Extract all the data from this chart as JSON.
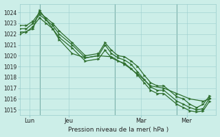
{
  "bg_color": "#cceee8",
  "grid_color": "#99cccc",
  "line_color": "#2d6e2d",
  "marker_color": "#2d6e2d",
  "xlabel": "Pression niveau de la mer( hPa )",
  "ylim": [
    1014.5,
    1024.8
  ],
  "yticks": [
    1015,
    1016,
    1017,
    1018,
    1019,
    1020,
    1021,
    1022,
    1023,
    1024
  ],
  "xlim": [
    0,
    30
  ],
  "xtick_labels": [
    "Lun",
    "Jeu",
    "Mar",
    "Mer"
  ],
  "xtick_positions": [
    1.5,
    7.5,
    18.5,
    25.5
  ],
  "vline_positions": [
    3.0,
    14.5,
    24.0
  ],
  "series": [
    {
      "x": [
        0,
        1,
        2,
        3,
        4,
        5,
        6,
        8,
        10,
        12,
        13,
        14,
        15,
        16,
        17,
        18,
        19,
        20,
        21,
        22,
        24,
        25,
        26,
        27,
        28,
        29
      ],
      "y": [
        1022.8,
        1022.8,
        1023.2,
        1024.0,
        1023.5,
        1023.0,
        1022.3,
        1021.2,
        1020.0,
        1020.2,
        1021.2,
        1020.5,
        1020.0,
        1019.9,
        1019.5,
        1019.0,
        1018.2,
        1017.5,
        1017.2,
        1017.2,
        1016.2,
        1016.0,
        1015.5,
        1015.2,
        1015.5,
        1016.3
      ]
    },
    {
      "x": [
        0,
        1,
        2,
        3,
        4,
        5,
        6,
        8,
        10,
        12,
        13,
        14,
        15,
        16,
        17,
        18,
        19,
        20,
        21,
        22,
        24,
        25,
        26,
        27,
        28,
        29
      ],
      "y": [
        1022.5,
        1022.5,
        1023.0,
        1023.8,
        1023.3,
        1022.8,
        1022.0,
        1021.0,
        1019.8,
        1020.0,
        1021.0,
        1020.2,
        1019.8,
        1019.6,
        1019.2,
        1018.5,
        1017.8,
        1017.1,
        1016.8,
        1016.8,
        1015.8,
        1015.5,
        1015.2,
        1015.0,
        1015.1,
        1016.1
      ]
    },
    {
      "x": [
        0,
        1,
        2,
        3,
        4,
        5,
        6,
        8,
        10,
        12,
        13,
        14,
        15,
        16,
        17,
        18,
        19,
        20,
        21,
        22,
        24,
        25,
        26,
        27,
        28,
        29
      ],
      "y": [
        1022.2,
        1022.2,
        1022.7,
        1023.5,
        1023.0,
        1022.5,
        1021.7,
        1020.7,
        1019.5,
        1019.7,
        1020.5,
        1019.8,
        1019.5,
        1019.3,
        1018.8,
        1018.2,
        1017.5,
        1016.8,
        1016.5,
        1016.5,
        1015.5,
        1015.2,
        1014.9,
        1014.8,
        1014.9,
        1015.8
      ]
    },
    {
      "x": [
        0,
        2,
        3,
        5,
        6,
        8,
        10,
        12,
        14,
        16,
        18,
        20,
        22,
        24,
        26,
        28,
        29
      ],
      "y": [
        1022.0,
        1022.5,
        1024.2,
        1022.5,
        1021.5,
        1020.2,
        1019.8,
        1020.0,
        1019.9,
        1019.2,
        1018.3,
        1017.2,
        1017.0,
        1016.5,
        1016.0,
        1015.8,
        1016.0
      ]
    }
  ]
}
